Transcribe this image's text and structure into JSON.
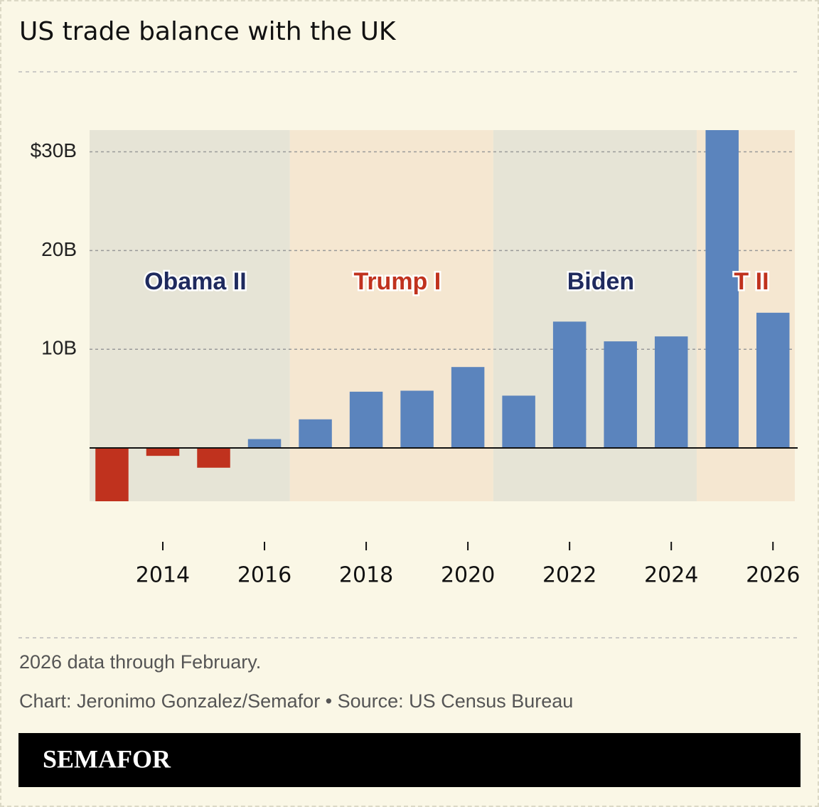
{
  "chart_data": {
    "type": "bar",
    "title": "US trade balance with the UK",
    "x": [
      2013,
      2014,
      2015,
      2016,
      2017,
      2018,
      2019,
      2020,
      2021,
      2022,
      2023,
      2024,
      2025,
      2026
    ],
    "values": [
      -5.4,
      -0.8,
      -2.0,
      0.9,
      2.9,
      5.7,
      5.8,
      8.2,
      5.3,
      12.8,
      10.8,
      11.3,
      32.2,
      13.7
    ],
    "positive_color": "#5b84bd",
    "negative_color": "#c0321e",
    "xlim": [
      2012.56,
      2026.43
    ],
    "xticks": [
      2014,
      2016,
      2018,
      2020,
      2022,
      2024,
      2026
    ],
    "ylim": [
      -5.4,
      32.2
    ],
    "yticks": [
      {
        "value": 10,
        "label": "10B"
      },
      {
        "value": 20,
        "label": "20B"
      },
      {
        "value": 30,
        "label": "$30B"
      }
    ],
    "grid": true,
    "periods": [
      {
        "name": "Obama II",
        "start": 2012.56,
        "end": 2016.5,
        "color": "#e6e4d6",
        "label_color": "#1f2a5e"
      },
      {
        "name": "Trump I",
        "start": 2016.5,
        "end": 2020.5,
        "color": "#f5e7d1",
        "label_color": "#c0321e"
      },
      {
        "name": "Biden",
        "start": 2020.5,
        "end": 2024.5,
        "color": "#e6e4d6",
        "label_color": "#1f2a5e"
      },
      {
        "name": "T II",
        "start": 2024.5,
        "end": 2026.43,
        "color": "#f5e7d1",
        "label_color": "#c0321e"
      }
    ],
    "note": "2026 data through February.",
    "credit": "Chart: Jeronimo Gonzalez/Semafor • Source: US Census Bureau",
    "brand": "SEMAFOR"
  }
}
